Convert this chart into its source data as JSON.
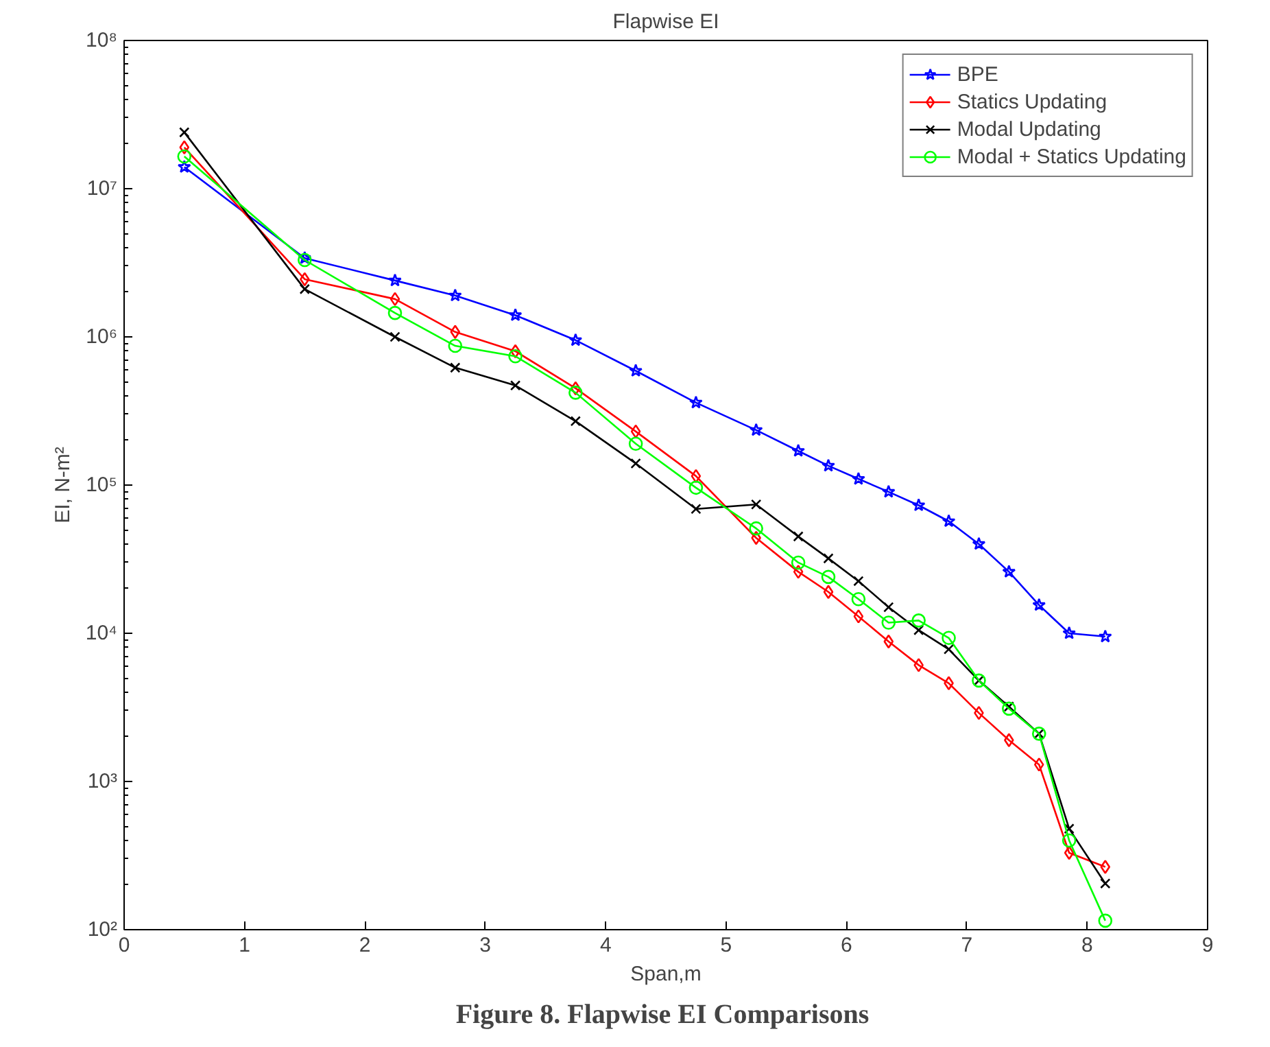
{
  "chart_data": {
    "type": "line",
    "title": "Flapwise EI",
    "xlabel": "Span,m",
    "ylabel": "EI, N-m²",
    "annotations": [
      "Figure 8.  Flapwise EI Comparisons"
    ],
    "x": [
      0.5,
      1.5,
      2.25,
      2.75,
      3.25,
      3.75,
      4.25,
      4.75,
      5.25,
      5.6,
      5.85,
      6.1,
      6.35,
      6.6,
      6.85,
      7.1,
      7.35,
      7.6,
      7.85,
      8.15
    ],
    "log": "y",
    "xlim": [
      0,
      9
    ],
    "xticks": [
      0,
      1,
      2,
      3,
      4,
      5,
      6,
      7,
      8,
      9
    ],
    "ylim": [
      100,
      100000000
    ],
    "yticks": [
      {
        "value": 100,
        "label": "10²"
      },
      {
        "value": 1000,
        "label": "10³"
      },
      {
        "value": 10000,
        "label": "10⁴"
      },
      {
        "value": 100000,
        "label": "10⁵"
      },
      {
        "value": 1000000,
        "label": "10⁶"
      },
      {
        "value": 10000000,
        "label": "10⁷"
      },
      {
        "value": 100000000,
        "label": "10⁸"
      }
    ],
    "grid": false,
    "legend": "top right",
    "line_style": "solid",
    "series": [
      {
        "name": "BPE",
        "color": "#0000ff",
        "marker": "star",
        "values": [
          14000000,
          3400000,
          2400000,
          1900000,
          1400000,
          950000,
          590000,
          360000,
          235000,
          170000,
          135000,
          110000,
          90000,
          73000,
          57000,
          40000,
          26000,
          15500,
          10000,
          9500
        ]
      },
      {
        "name": "Statics Updating",
        "color": "#ff0000",
        "marker": "diamond",
        "values": [
          19000000,
          2450000,
          1800000,
          1080000,
          800000,
          450000,
          230000,
          115000,
          44000,
          26000,
          19000,
          13000,
          8800,
          6100,
          4600,
          2900,
          1900,
          1300,
          330,
          265
        ]
      },
      {
        "name": "Modal Updating",
        "color": "#000000",
        "marker": "cross",
        "values": [
          24000000,
          2100000,
          1000000,
          620000,
          470000,
          270000,
          140000,
          69000,
          74000,
          45000,
          32000,
          22500,
          15000,
          10500,
          7800,
          4800,
          3200,
          2100,
          480,
          205
        ]
      },
      {
        "name": "Modal + Statics Updating",
        "color": "#00ff00",
        "marker": "circle",
        "values": [
          16500000,
          3300000,
          1450000,
          870000,
          740000,
          420000,
          190000,
          96000,
          51000,
          30000,
          24000,
          17000,
          11800,
          12200,
          9300,
          4800,
          3100,
          2100,
          400,
          115
        ]
      }
    ]
  }
}
